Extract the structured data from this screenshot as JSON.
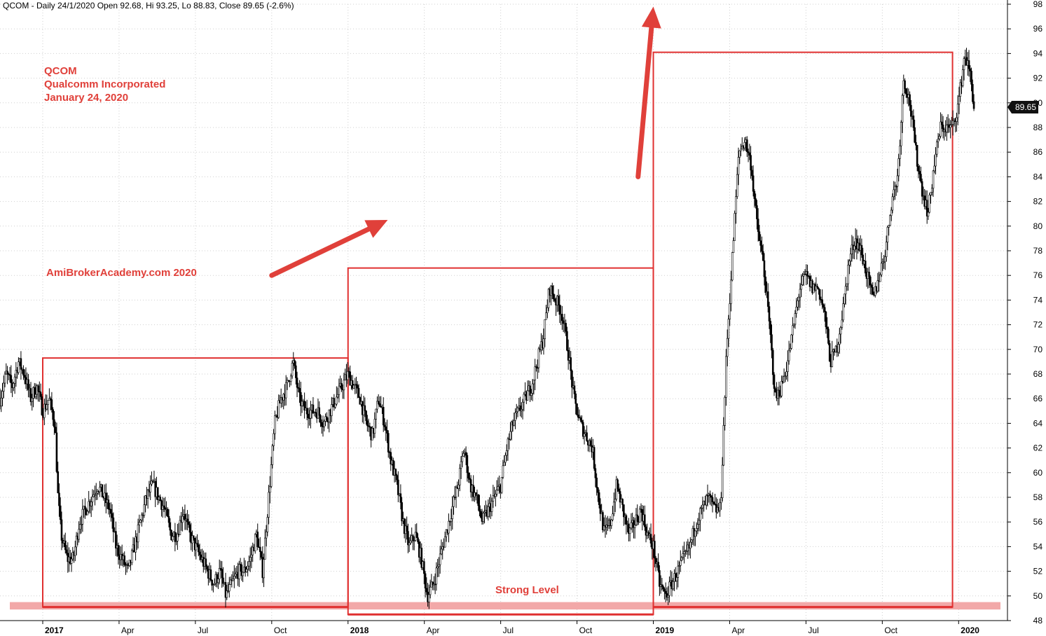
{
  "header": {
    "text": "QCOM - Daily 24/1/2020 Open 92.68, Hi 93.25, Lo 88.83, Close 89.65 (-2.6%)"
  },
  "annotations": {
    "ticker": "QCOM",
    "company": "Qualcomm Incorporated",
    "date": "January 24, 2020",
    "source": "AmiBrokerAcademy.com  2020",
    "strong_level": "Strong Level"
  },
  "colors": {
    "annotation": "#e0403a",
    "box": "#e03030",
    "support_band": "#f2a8a8",
    "candle": "#000000",
    "grid": "#cfcfcf"
  },
  "chart_data": {
    "type": "candlestick",
    "title": "QCOM - Daily 24/1/2020",
    "ohlc_last": {
      "date": "24/1/2020",
      "open": 92.68,
      "high": 93.25,
      "low": 88.83,
      "close": 89.65,
      "change_pct": -2.6
    },
    "last_price_label": "89.65",
    "ylim": [
      48,
      98
    ],
    "y_ticks": [
      "48",
      "50",
      "52",
      "54",
      "56",
      "58",
      "60",
      "62",
      "64",
      "66",
      "68",
      "70",
      "72",
      "74",
      "76",
      "78",
      "80",
      "82",
      "84",
      "86",
      "88",
      "90",
      "92",
      "94",
      "96",
      "98"
    ],
    "x_ticks": [
      {
        "label": "2017",
        "year": true,
        "t": 2017.0
      },
      {
        "label": "Apr",
        "year": false,
        "t": 2017.25
      },
      {
        "label": "Jul",
        "year": false,
        "t": 2017.5
      },
      {
        "label": "Oct",
        "year": false,
        "t": 2017.75
      },
      {
        "label": "2018",
        "year": true,
        "t": 2018.0
      },
      {
        "label": "Apr",
        "year": false,
        "t": 2018.25
      },
      {
        "label": "Jul",
        "year": false,
        "t": 2018.5
      },
      {
        "label": "Oct",
        "year": false,
        "t": 2018.75
      },
      {
        "label": "2019",
        "year": true,
        "t": 2019.0
      },
      {
        "label": "Apr",
        "year": false,
        "t": 2019.25
      },
      {
        "label": "Jul",
        "year": false,
        "t": 2019.5
      },
      {
        "label": "Oct",
        "year": false,
        "t": 2019.75
      },
      {
        "label": "2020",
        "year": true,
        "t": 2020.0
      }
    ],
    "xlim": [
      2016.86,
      2020.16
    ],
    "price_path": [
      [
        2016.86,
        66
      ],
      [
        2016.88,
        68
      ],
      [
        2016.9,
        67
      ],
      [
        2016.92,
        69
      ],
      [
        2016.94,
        68
      ],
      [
        2016.96,
        66
      ],
      [
        2016.98,
        67
      ],
      [
        2017.0,
        65
      ],
      [
        2017.02,
        66
      ],
      [
        2017.04,
        64
      ],
      [
        2017.05,
        58
      ],
      [
        2017.06,
        55
      ],
      [
        2017.08,
        53
      ],
      [
        2017.1,
        53
      ],
      [
        2017.12,
        56
      ],
      [
        2017.14,
        57
      ],
      [
        2017.16,
        58
      ],
      [
        2017.18,
        59
      ],
      [
        2017.2,
        58
      ],
      [
        2017.22,
        57
      ],
      [
        2017.24,
        54
      ],
      [
        2017.26,
        53
      ],
      [
        2017.28,
        52
      ],
      [
        2017.3,
        54
      ],
      [
        2017.32,
        56
      ],
      [
        2017.34,
        58
      ],
      [
        2017.36,
        59
      ],
      [
        2017.38,
        58
      ],
      [
        2017.4,
        57
      ],
      [
        2017.42,
        55
      ],
      [
        2017.44,
        55
      ],
      [
        2017.46,
        57
      ],
      [
        2017.48,
        55
      ],
      [
        2017.5,
        54
      ],
      [
        2017.52,
        53
      ],
      [
        2017.54,
        52
      ],
      [
        2017.56,
        51
      ],
      [
        2017.58,
        52
      ],
      [
        2017.6,
        50
      ],
      [
        2017.62,
        51
      ],
      [
        2017.64,
        52
      ],
      [
        2017.66,
        52
      ],
      [
        2017.68,
        53
      ],
      [
        2017.7,
        55
      ],
      [
        2017.72,
        52
      ],
      [
        2017.74,
        58
      ],
      [
        2017.76,
        64
      ],
      [
        2017.78,
        66
      ],
      [
        2017.8,
        67
      ],
      [
        2017.82,
        69
      ],
      [
        2017.84,
        66
      ],
      [
        2017.86,
        65
      ],
      [
        2017.88,
        65
      ],
      [
        2017.9,
        65
      ],
      [
        2017.92,
        64
      ],
      [
        2017.94,
        65
      ],
      [
        2017.96,
        66
      ],
      [
        2017.98,
        67
      ],
      [
        2018.0,
        68
      ],
      [
        2018.02,
        67
      ],
      [
        2018.04,
        66
      ],
      [
        2018.06,
        64
      ],
      [
        2018.08,
        63
      ],
      [
        2018.1,
        66
      ],
      [
        2018.12,
        64
      ],
      [
        2018.14,
        61
      ],
      [
        2018.16,
        59
      ],
      [
        2018.18,
        56
      ],
      [
        2018.2,
        54
      ],
      [
        2018.22,
        55
      ],
      [
        2018.24,
        53
      ],
      [
        2018.26,
        50
      ],
      [
        2018.28,
        51
      ],
      [
        2018.3,
        53
      ],
      [
        2018.32,
        55
      ],
      [
        2018.34,
        57
      ],
      [
        2018.36,
        59
      ],
      [
        2018.38,
        62
      ],
      [
        2018.4,
        59
      ],
      [
        2018.42,
        58
      ],
      [
        2018.44,
        56
      ],
      [
        2018.46,
        57
      ],
      [
        2018.48,
        58
      ],
      [
        2018.5,
        59
      ],
      [
        2018.52,
        62
      ],
      [
        2018.54,
        64
      ],
      [
        2018.56,
        65
      ],
      [
        2018.58,
        66
      ],
      [
        2018.6,
        67
      ],
      [
        2018.62,
        69
      ],
      [
        2018.64,
        71
      ],
      [
        2018.66,
        75
      ],
      [
        2018.68,
        74
      ],
      [
        2018.7,
        73
      ],
      [
        2018.72,
        70
      ],
      [
        2018.74,
        66
      ],
      [
        2018.76,
        64
      ],
      [
        2018.78,
        63
      ],
      [
        2018.8,
        62
      ],
      [
        2018.82,
        58
      ],
      [
        2018.84,
        55
      ],
      [
        2018.86,
        56
      ],
      [
        2018.88,
        59
      ],
      [
        2018.9,
        57
      ],
      [
        2018.92,
        55
      ],
      [
        2018.94,
        56
      ],
      [
        2018.96,
        57
      ],
      [
        2018.98,
        55
      ],
      [
        2019.0,
        54
      ],
      [
        2019.02,
        51
      ],
      [
        2019.04,
        50
      ],
      [
        2019.06,
        51
      ],
      [
        2019.08,
        52
      ],
      [
        2019.1,
        53
      ],
      [
        2019.12,
        54
      ],
      [
        2019.14,
        56
      ],
      [
        2019.16,
        57
      ],
      [
        2019.18,
        58
      ],
      [
        2019.2,
        57
      ],
      [
        2019.22,
        57
      ],
      [
        2019.24,
        70
      ],
      [
        2019.26,
        78
      ],
      [
        2019.28,
        86
      ],
      [
        2019.3,
        87
      ],
      [
        2019.32,
        85
      ],
      [
        2019.34,
        80
      ],
      [
        2019.36,
        77
      ],
      [
        2019.38,
        72
      ],
      [
        2019.4,
        66
      ],
      [
        2019.42,
        67
      ],
      [
        2019.44,
        69
      ],
      [
        2019.46,
        72
      ],
      [
        2019.48,
        75
      ],
      [
        2019.5,
        76
      ],
      [
        2019.52,
        75
      ],
      [
        2019.54,
        75
      ],
      [
        2019.56,
        73
      ],
      [
        2019.58,
        69
      ],
      [
        2019.6,
        70
      ],
      [
        2019.62,
        73
      ],
      [
        2019.64,
        77
      ],
      [
        2019.66,
        79
      ],
      [
        2019.68,
        78
      ],
      [
        2019.7,
        76
      ],
      [
        2019.72,
        74
      ],
      [
        2019.74,
        76
      ],
      [
        2019.76,
        78
      ],
      [
        2019.78,
        82
      ],
      [
        2019.8,
        84
      ],
      [
        2019.82,
        92
      ],
      [
        2019.84,
        90
      ],
      [
        2019.86,
        86
      ],
      [
        2019.88,
        83
      ],
      [
        2019.9,
        81
      ],
      [
        2019.92,
        85
      ],
      [
        2019.94,
        88
      ],
      [
        2019.96,
        88
      ],
      [
        2019.98,
        88
      ],
      [
        2020.0,
        90
      ],
      [
        2020.02,
        94
      ],
      [
        2020.04,
        92
      ],
      [
        2020.05,
        89.65
      ]
    ],
    "boxes": [
      {
        "t0": 2017.0,
        "t1": 2018.0,
        "top": 69.3,
        "bottom": 49.1
      },
      {
        "t0": 2018.0,
        "t1": 2019.0,
        "top": 76.6,
        "bottom": 48.5
      },
      {
        "t0": 2019.0,
        "t1": 2019.98,
        "top": 94.1,
        "bottom": 49.1
      }
    ],
    "support_band": {
      "low": 48.9,
      "high": 49.5
    },
    "arrows": [
      {
        "from": [
          2017.75,
          76.0
        ],
        "to": [
          2018.13,
          80.5
        ]
      },
      {
        "from": [
          2018.95,
          84.0
        ],
        "to": [
          2019.0,
          97.8
        ]
      }
    ]
  }
}
